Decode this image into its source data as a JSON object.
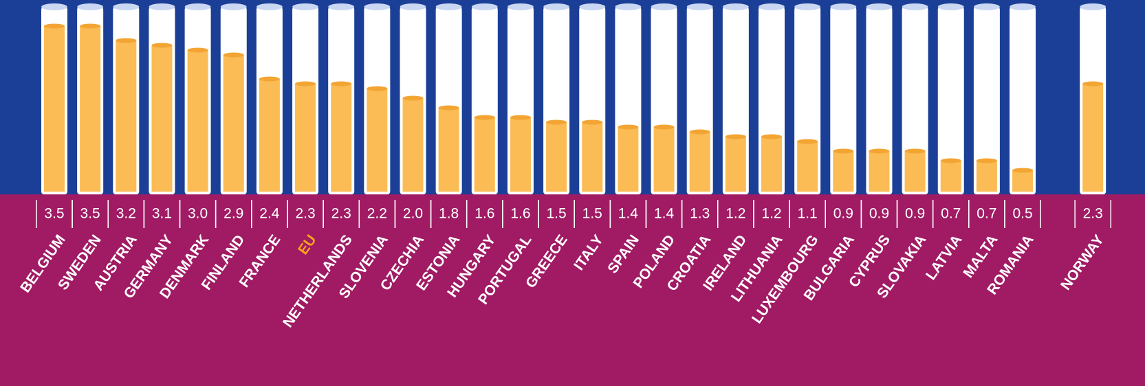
{
  "chart_data": {
    "type": "bar",
    "categories": [
      "BELGIUM",
      "SWEDEN",
      "AUSTRIA",
      "GERMANY",
      "DENMARK",
      "FINLAND",
      "FRANCE",
      "EU",
      "NETHERLANDS",
      "SLOVENIA",
      "CZECHIA",
      "ESTONIA",
      "HUNGARY",
      "PORTUGAL",
      "GREECE",
      "ITALY",
      "SPAIN",
      "POLAND",
      "CROATIA",
      "IRELAND",
      "LITHUANIA",
      "LUXEMBOURG",
      "BULGARIA",
      "CYPRUS",
      "SLOVAKIA",
      "LATVIA",
      "MALTA",
      "ROMANIA",
      "NORWAY"
    ],
    "values": [
      3.5,
      3.5,
      3.2,
      3.1,
      3.0,
      2.9,
      2.4,
      2.3,
      2.3,
      2.2,
      2.0,
      1.8,
      1.6,
      1.6,
      1.5,
      1.5,
      1.4,
      1.4,
      1.3,
      1.2,
      1.2,
      1.1,
      0.9,
      0.9,
      0.9,
      0.7,
      0.7,
      0.5,
      2.3
    ],
    "value_labels": [
      "3.5",
      "3.5",
      "3.2",
      "3.1",
      "3.0",
      "2.9",
      "2.4",
      "2.3",
      "2.3",
      "2.2",
      "2.0",
      "1.8",
      "1.6",
      "1.6",
      "1.5",
      "1.5",
      "1.4",
      "1.4",
      "1.3",
      "1.2",
      "1.2",
      "1.1",
      "0.9",
      "0.9",
      "0.9",
      "0.7",
      "0.7",
      "0.5",
      "2.3"
    ],
    "color": "#fbbc55",
    "label_colors": [
      "#ffffff",
      "#ffffff",
      "#ffffff",
      "#ffffff",
      "#ffffff",
      "#ffffff",
      "#ffffff",
      "#f7a21b",
      "#ffffff",
      "#ffffff",
      "#ffffff",
      "#ffffff",
      "#ffffff",
      "#ffffff",
      "#ffffff",
      "#ffffff",
      "#ffffff",
      "#ffffff",
      "#ffffff",
      "#ffffff",
      "#ffffff",
      "#ffffff",
      "#ffffff",
      "#ffffff",
      "#ffffff",
      "#ffffff",
      "#ffffff",
      "#ffffff",
      "#ffffff"
    ]
  }
}
